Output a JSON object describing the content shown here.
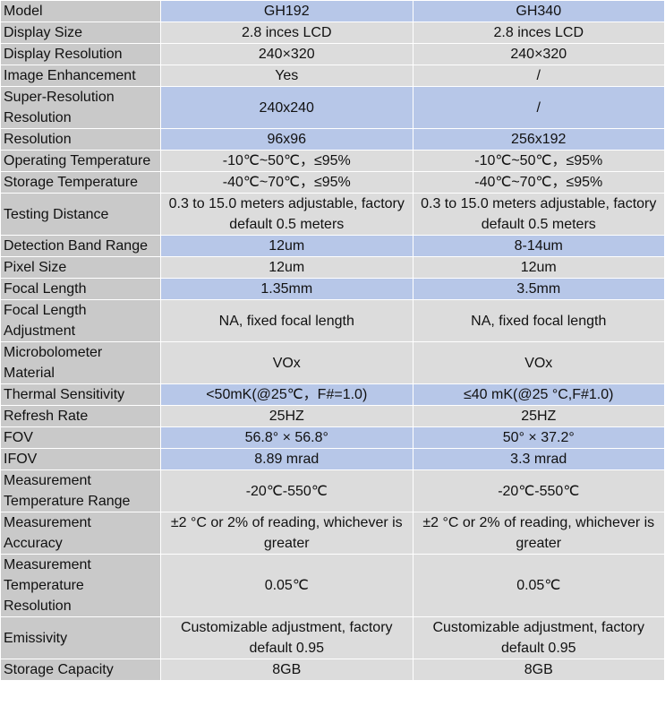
{
  "table": {
    "rows": [
      [
        "Model",
        "GH192",
        "GH340"
      ],
      [
        "Display Size",
        "2.8 inces LCD",
        "2.8 inces LCD"
      ],
      [
        "Display Resolution",
        "240×320",
        "240×320"
      ],
      [
        "Image Enhancement",
        "Yes",
        "/"
      ],
      [
        "Super-Resolution Resolution",
        "240x240",
        "/"
      ],
      [
        "Resolution",
        "96x96",
        "256x192"
      ],
      [
        "Operating Temperature",
        "-10℃~50℃，≤95%",
        "-10℃~50℃，≤95%"
      ],
      [
        "Storage Temperature",
        "-40℃~70℃，≤95%",
        "-40℃~70℃，≤95%"
      ],
      [
        "Testing Distance",
        "0.3 to 15.0 meters adjustable, factory default 0.5 meters",
        "0.3 to 15.0 meters adjustable, factory default 0.5 meters"
      ],
      [
        "Detection Band Range",
        "12um",
        "8-14um"
      ],
      [
        "Pixel Size",
        "12um",
        "12um"
      ],
      [
        "Focal Length",
        "1.35mm",
        "3.5mm"
      ],
      [
        "Focal Length Adjustment",
        "NA, fixed focal length",
        "NA, fixed focal length"
      ],
      [
        "Microbolometer Material",
        "VOx",
        "VOx"
      ],
      [
        "Thermal Sensitivity",
        "<50mK(@25℃，F#=1.0)",
        "≤40 mK(@25 °C,F#1.0)"
      ],
      [
        "Refresh Rate",
        "25HZ",
        "25HZ"
      ],
      [
        "FOV",
        "56.8° × 56.8°",
        "50° × 37.2°"
      ],
      [
        "IFOV",
        "8.89 mrad",
        "3.3 mrad"
      ],
      [
        "Measurement Temperature Range",
        "-20℃-550℃",
        "-20℃-550℃"
      ],
      [
        "Measurement Accuracy",
        "±2 °C or 2% of reading, whichever is greater",
        "±2 °C or 2% of reading, whichever is greater"
      ],
      [
        "Measurement Temperature Resolution",
        "0.05℃",
        "0.05℃"
      ],
      [
        "Emissivity",
        "Customizable adjustment, factory default 0.95",
        "Customizable adjustment, factory default 0.95"
      ],
      [
        "Storage Capacity",
        "8GB",
        "8GB"
      ]
    ]
  }
}
